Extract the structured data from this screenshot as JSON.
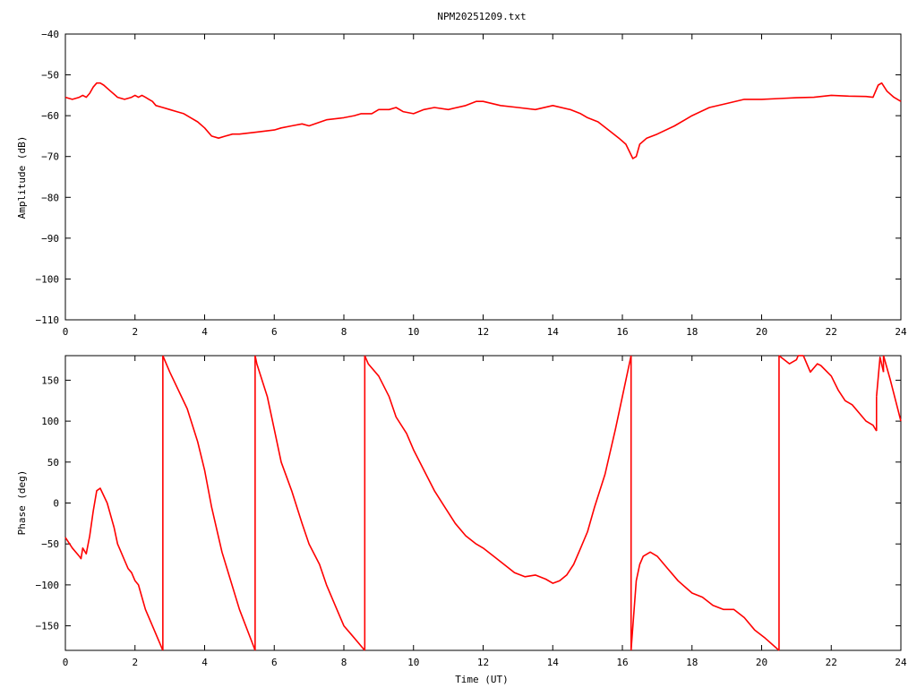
{
  "title": "NPM20251209.txt",
  "chart_data": [
    {
      "type": "line",
      "ylabel": "Amplitude (dB)",
      "xlabel": "",
      "xlim": [
        0,
        24
      ],
      "ylim": [
        -110,
        -40
      ],
      "x_ticks": [
        "0",
        "2",
        "4",
        "6",
        "8",
        "10",
        "12",
        "14",
        "16",
        "18",
        "20",
        "22",
        "24"
      ],
      "y_ticks": [
        "−110",
        "−100",
        "−90",
        "−80",
        "−70",
        "−60",
        "−50",
        "−40"
      ],
      "grid": false,
      "color": "#ff0000",
      "x": [
        0,
        0.2,
        0.4,
        0.5,
        0.6,
        0.7,
        0.8,
        0.9,
        1.0,
        1.1,
        1.3,
        1.5,
        1.7,
        1.9,
        2.0,
        2.1,
        2.2,
        2.3,
        2.4,
        2.5,
        2.6,
        2.8,
        3.0,
        3.2,
        3.4,
        3.6,
        3.8,
        4.0,
        4.2,
        4.4,
        4.6,
        4.8,
        5.0,
        5.5,
        6.0,
        6.2,
        6.5,
        6.8,
        7.0,
        7.5,
        8.0,
        8.3,
        8.5,
        8.8,
        9.0,
        9.3,
        9.5,
        9.7,
        10.0,
        10.3,
        10.6,
        11.0,
        11.5,
        11.8,
        12.0,
        12.5,
        13.0,
        13.5,
        14.0,
        14.5,
        14.8,
        15.0,
        15.3,
        15.6,
        15.9,
        16.1,
        16.3,
        16.4,
        16.5,
        16.7,
        17.0,
        17.5,
        18.0,
        18.5,
        19.0,
        19.5,
        20.0,
        20.5,
        21.0,
        21.5,
        22.0,
        22.5,
        23.0,
        23.2,
        23.35,
        23.45,
        23.6,
        23.8,
        24.0
      ],
      "y": [
        -55.5,
        -56,
        -55.5,
        -55,
        -55.5,
        -54.5,
        -53,
        -52,
        -52,
        -52.5,
        -54,
        -55.5,
        -56,
        -55.5,
        -55,
        -55.5,
        -55,
        -55.5,
        -56,
        -56.5,
        -57.5,
        -58,
        -58.5,
        -59,
        -59.5,
        -60.5,
        -61.5,
        -63,
        -65,
        -65.5,
        -65,
        -64.5,
        -64.5,
        -64,
        -63.5,
        -63,
        -62.5,
        -62,
        -62.5,
        -61,
        -60.5,
        -60,
        -59.5,
        -59.5,
        -58.5,
        -58.5,
        -58,
        -59,
        -59.5,
        -58.5,
        -58,
        -58.5,
        -57.5,
        -56.5,
        -56.5,
        -57.5,
        -58,
        -58.5,
        -57.5,
        -58.5,
        -59.5,
        -60.5,
        -61.5,
        -63.5,
        -65.5,
        -67,
        -70.5,
        -70,
        -67,
        -65.5,
        -64.5,
        -62.5,
        -60,
        -58,
        -57,
        -56,
        -56,
        -55.8,
        -55.6,
        -55.5,
        -55,
        -55.2,
        -55.3,
        -55.5,
        -52.5,
        -52,
        -54,
        -55.5,
        -56.5
      ]
    },
    {
      "type": "line",
      "ylabel": "Phase (deg)",
      "xlabel": "Time (UT)",
      "xlim": [
        0,
        24
      ],
      "ylim": [
        -180,
        180
      ],
      "x_ticks": [
        "0",
        "2",
        "4",
        "6",
        "8",
        "10",
        "12",
        "14",
        "16",
        "18",
        "20",
        "22",
        "24"
      ],
      "y_ticks": [
        "−150",
        "−100",
        "−50",
        "0",
        "50",
        "100",
        "150"
      ],
      "grid": false,
      "color": "#ff0000",
      "segments": [
        {
          "x": [
            0,
            0.2,
            0.4,
            0.45,
            0.5,
            0.6,
            0.7,
            0.8,
            0.9,
            1.0,
            1.2,
            1.4,
            1.5,
            1.6,
            1.7,
            1.8,
            1.9,
            2.0,
            2.1,
            2.2,
            2.3,
            2.5,
            2.7,
            2.8
          ],
          "y": [
            -42,
            -55,
            -65,
            -68,
            -55,
            -62,
            -40,
            -10,
            15,
            18,
            0,
            -30,
            -50,
            -60,
            -70,
            -80,
            -85,
            -95,
            -100,
            -115,
            -130,
            -150,
            -170,
            -180
          ]
        },
        {
          "x": [
            2.8,
            3.0,
            3.5,
            3.8,
            4.0,
            4.2,
            4.5,
            5.0,
            5.45
          ],
          "y": [
            180,
            160,
            115,
            75,
            40,
            -5,
            -60,
            -130,
            -180
          ]
        },
        {
          "x": [
            5.45,
            5.5,
            5.8,
            6.0,
            6.2,
            6.5,
            6.8,
            7.0,
            7.3,
            7.5,
            7.8,
            8.0,
            8.2,
            8.4,
            8.6
          ],
          "y": [
            180,
            170,
            130,
            90,
            50,
            15,
            -25,
            -50,
            -75,
            -100,
            -130,
            -150,
            -160,
            -170,
            -180
          ]
        },
        {
          "x": [
            8.6,
            8.7,
            9.0,
            9.3,
            9.5,
            9.8,
            10.0,
            10.3,
            10.6,
            10.9,
            11.2,
            11.5,
            11.8,
            12.0,
            12.3,
            12.6,
            12.9,
            13.2,
            13.5,
            13.8,
            14.0,
            14.2,
            14.4,
            14.6,
            14.8,
            15.0,
            15.2,
            15.5,
            15.8,
            16.0,
            16.25
          ],
          "y": [
            180,
            170,
            155,
            130,
            105,
            85,
            65,
            40,
            15,
            -5,
            -25,
            -40,
            -50,
            -55,
            -65,
            -75,
            -85,
            -90,
            -88,
            -93,
            -98,
            -95,
            -88,
            -75,
            -55,
            -35,
            -5,
            35,
            90,
            130,
            180
          ]
        },
        {
          "x": [
            16.25,
            16.4,
            16.5,
            16.6,
            16.8,
            17.0,
            17.3,
            17.6,
            18.0,
            18.3,
            18.6,
            18.9,
            19.2,
            19.5,
            19.8,
            20.1,
            20.5
          ],
          "y": [
            -180,
            -95,
            -75,
            -65,
            -60,
            -65,
            -80,
            -95,
            -110,
            -115,
            -125,
            -130,
            -130,
            -140,
            -155,
            -165,
            -180
          ]
        },
        {
          "x": [
            20.5,
            20.8,
            21.0,
            21.05
          ],
          "y": [
            180,
            170,
            175,
            180
          ]
        },
        {
          "x": [
            21.2,
            21.4,
            21.6,
            21.7,
            22.0,
            22.2,
            22.4,
            22.6,
            22.8,
            23.0,
            23.2,
            23.3
          ],
          "y": [
            180,
            160,
            170,
            168,
            155,
            138,
            125,
            120,
            110,
            100,
            95,
            88
          ]
        },
        {
          "x": [
            23.3,
            23.4,
            23.5
          ],
          "y": [
            130,
            178,
            160
          ]
        },
        {
          "x": [
            23.5,
            23.7,
            24.0
          ],
          "y": [
            180,
            150,
            100
          ]
        }
      ]
    }
  ]
}
